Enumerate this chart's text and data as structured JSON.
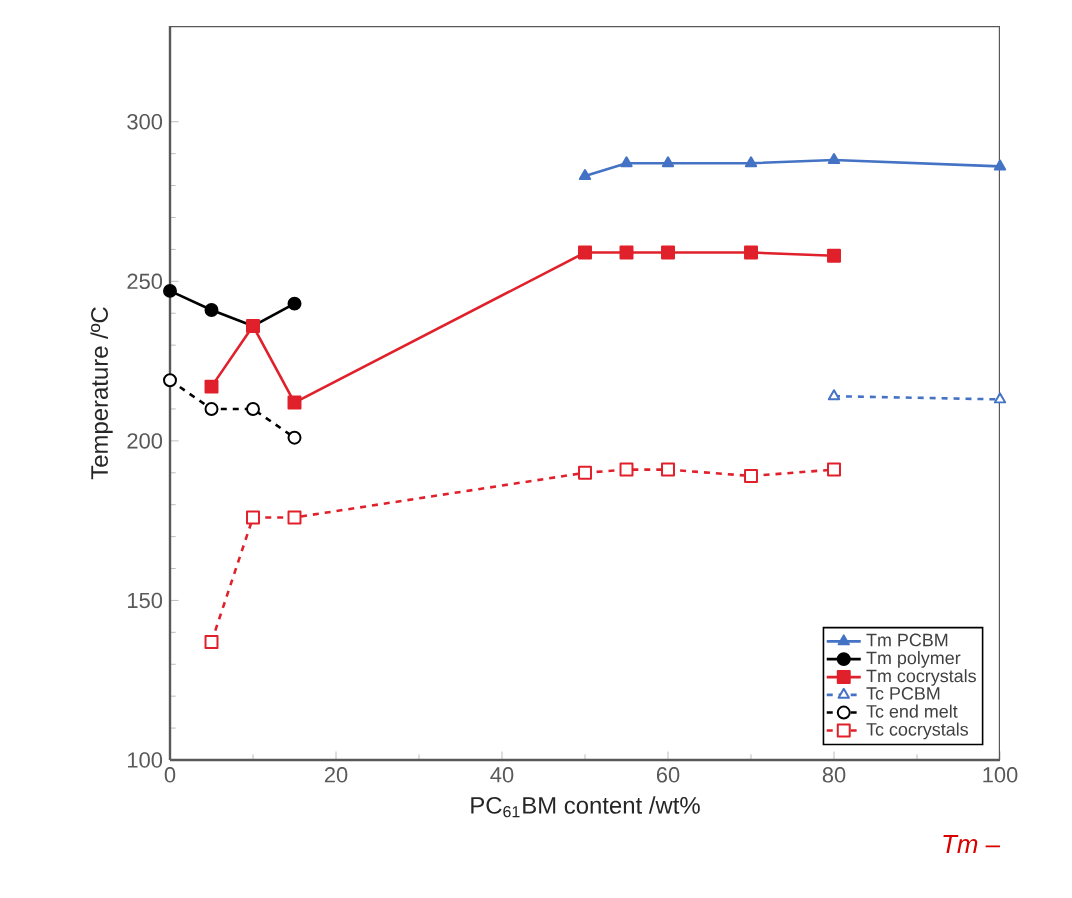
{
  "chart_data": {
    "type": "line",
    "xlabel": "PC$_{61}$BM content /wt%",
    "ylabel": "Temperature /ºC",
    "xlim": [
      0,
      100
    ],
    "ylim": [
      100,
      330
    ],
    "xticks": [
      0,
      20,
      40,
      60,
      80,
      100
    ],
    "yticks": [
      100,
      150,
      200,
      250,
      300
    ],
    "legend": "bottom right",
    "grid": false,
    "annotations": [
      "Tm –"
    ],
    "series": [
      {
        "name": "Tm PCBM",
        "color": "#4472c4",
        "marker": "triangle",
        "line_style": "solid",
        "x": [
          50,
          55,
          60,
          70,
          80,
          100
        ],
        "values": [
          283,
          287,
          287,
          287,
          288,
          286
        ]
      },
      {
        "name": "Tm polymer",
        "color": "#000000",
        "marker": "circle",
        "line_style": "solid",
        "x": [
          0,
          5,
          10,
          15
        ],
        "values": [
          247,
          241,
          236,
          243
        ]
      },
      {
        "name": "Tm cocrystals",
        "color": "#e0202a",
        "marker": "square",
        "line_style": "solid",
        "x": [
          5,
          10,
          15,
          50,
          55,
          60,
          70,
          80
        ],
        "values": [
          217,
          236,
          212,
          259,
          259,
          259,
          259,
          258
        ]
      },
      {
        "name": "Tc PCBM",
        "color": "#4472c4",
        "marker": "triangle",
        "line_style": "dashed",
        "x": [
          80,
          100
        ],
        "values": [
          214,
          213
        ]
      },
      {
        "name": "Tc end melt",
        "color": "#000000",
        "marker": "circle",
        "line_style": "dashed",
        "x": [
          0,
          5,
          10,
          15
        ],
        "values": [
          219,
          210,
          210,
          201
        ]
      },
      {
        "name": "Tc cocrystals",
        "color": "#e0202a",
        "marker": "square",
        "line_style": "dashed",
        "x": [
          5,
          10,
          15,
          50,
          55,
          60,
          70,
          80
        ],
        "values": [
          137,
          176,
          176,
          190,
          191,
          191,
          189,
          191
        ]
      }
    ]
  }
}
